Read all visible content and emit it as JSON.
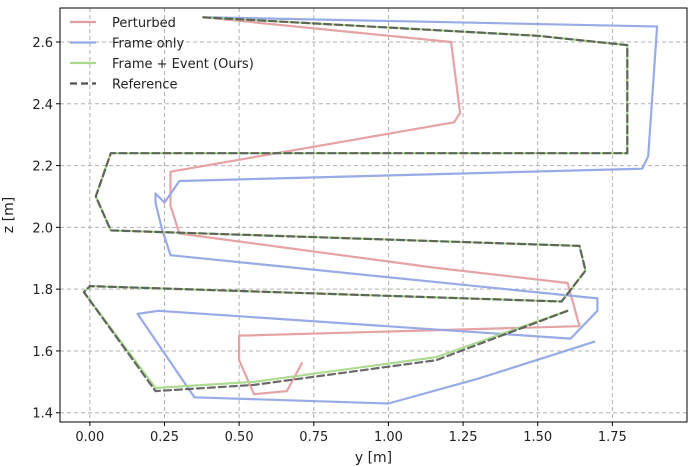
{
  "chart_data": {
    "type": "line",
    "xlabel": "y [m]",
    "ylabel": "z [m]",
    "xlim": [
      -0.1,
      2.0
    ],
    "ylim": [
      1.37,
      2.71
    ],
    "xticks": [
      "0.00",
      "0.25",
      "0.50",
      "0.75",
      "1.00",
      "1.25",
      "1.50",
      "1.75"
    ],
    "xtick_values": [
      0.0,
      0.25,
      0.5,
      0.75,
      1.0,
      1.25,
      1.5,
      1.75
    ],
    "yticks": [
      "1.4",
      "1.6",
      "1.8",
      "2.0",
      "2.2",
      "2.4",
      "2.6"
    ],
    "ytick_values": [
      1.4,
      1.6,
      1.8,
      2.0,
      2.2,
      2.4,
      2.6
    ],
    "grid": true,
    "legend_position": "top-left",
    "series": [
      {
        "name": "Perturbed",
        "color": "#e49ea0",
        "style": "solid",
        "points": [
          [
            0.38,
            2.68
          ],
          [
            1.21,
            2.6
          ],
          [
            1.24,
            2.37
          ],
          [
            1.22,
            2.34
          ],
          [
            0.27,
            2.18
          ],
          [
            0.27,
            2.07
          ],
          [
            0.3,
            1.98
          ],
          [
            1.15,
            1.87
          ],
          [
            1.6,
            1.82
          ],
          [
            1.64,
            1.68
          ],
          [
            0.52,
            1.65
          ],
          [
            0.5,
            1.65
          ],
          [
            0.5,
            1.57
          ],
          [
            0.55,
            1.46
          ],
          [
            0.66,
            1.47
          ],
          [
            0.71,
            1.56
          ]
        ]
      },
      {
        "name": "Frame only",
        "color": "#92a7e6",
        "style": "solid",
        "points": [
          [
            0.4,
            2.68
          ],
          [
            1.9,
            2.65
          ],
          [
            1.87,
            2.23
          ],
          [
            1.85,
            2.19
          ],
          [
            0.3,
            2.15
          ],
          [
            0.25,
            2.08
          ],
          [
            0.22,
            2.11
          ],
          [
            0.22,
            2.08
          ],
          [
            0.24,
            2.0
          ],
          [
            0.27,
            1.91
          ],
          [
            1.7,
            1.77
          ],
          [
            1.7,
            1.73
          ],
          [
            1.61,
            1.64
          ],
          [
            0.23,
            1.73
          ],
          [
            0.16,
            1.72
          ],
          [
            0.35,
            1.45
          ],
          [
            1.0,
            1.43
          ],
          [
            1.3,
            1.51
          ],
          [
            1.69,
            1.63
          ]
        ]
      },
      {
        "name": "Frame + Event (Ours)",
        "color": "#a9d98a",
        "style": "solid",
        "points": [
          [
            0.38,
            2.68
          ],
          [
            1.5,
            2.62
          ],
          [
            1.8,
            2.59
          ],
          [
            1.8,
            2.24
          ],
          [
            0.07,
            2.24
          ],
          [
            0.02,
            2.1
          ],
          [
            0.07,
            1.99
          ],
          [
            1.64,
            1.94
          ],
          [
            1.66,
            1.86
          ],
          [
            1.58,
            1.76
          ],
          [
            0.0,
            1.81
          ],
          [
            -0.02,
            1.79
          ],
          [
            0.22,
            1.48
          ],
          [
            0.55,
            1.5
          ],
          [
            1.16,
            1.58
          ],
          [
            1.6,
            1.73
          ]
        ]
      },
      {
        "name": "Reference",
        "color": "#505050",
        "style": "dashed",
        "points": [
          [
            0.38,
            2.68
          ],
          [
            1.5,
            2.62
          ],
          [
            1.8,
            2.59
          ],
          [
            1.8,
            2.24
          ],
          [
            0.07,
            2.24
          ],
          [
            0.02,
            2.1
          ],
          [
            0.07,
            1.99
          ],
          [
            1.64,
            1.94
          ],
          [
            1.66,
            1.86
          ],
          [
            1.58,
            1.76
          ],
          [
            0.0,
            1.81
          ],
          [
            -0.02,
            1.79
          ],
          [
            0.22,
            1.47
          ],
          [
            0.55,
            1.49
          ],
          [
            1.16,
            1.57
          ],
          [
            1.6,
            1.73
          ]
        ]
      }
    ]
  }
}
